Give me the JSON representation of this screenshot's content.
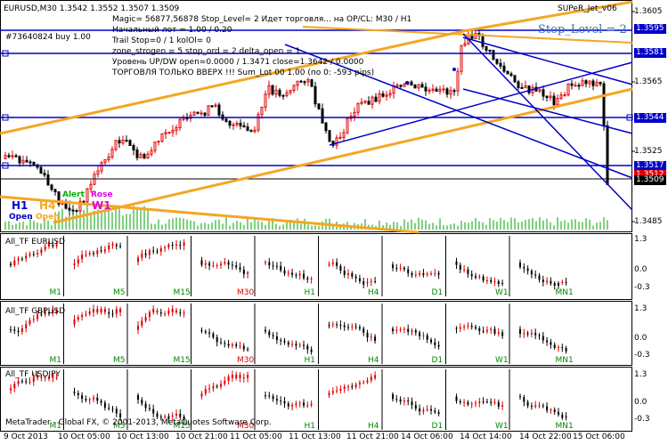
{
  "title_bar": {
    "symbol": "EURUSD,M30",
    "ohlc": "1.3542 1.3552 1.3507 1.3509",
    "indicator_name": "SUPeR_Jet_v06",
    "order_line": "#73640824 buy 1.00"
  },
  "info_lines": [
    "Magic= 56877,56878  Stop_Level= 2  Идет торговля... на OP/CL: M30 / H1",
    "Начальный лот = 1.00 / 0.20",
    "Trail Stop=0 / 1  kolOl= 0",
    "zone_strogen = 5  stop_ord = 2  delta_open = 1",
    "Уровень UP/DW open=0.0000 / 1.3471  close=1.3642 / 0.0000",
    "ТОРГОВЛЯ ТОЛЬКО ВВЕРХ !!!  Sum_Lot 00 1.00 (по 0: -593 pips)"
  ],
  "stop_level_label": "Stop_Level = 2",
  "price_axis": [
    "1.3605",
    "1.3565",
    "1.3525",
    "1.3485"
  ],
  "price_tags": {
    "t3595": "1.3595",
    "t3581": "1.3581",
    "t3544": "1.3544",
    "t3517": "1.3517",
    "t3512": "1.3512",
    "t3509": "1.3509"
  },
  "tf_tags": {
    "h1": "H1",
    "h4": "H4",
    "open1": "Open",
    "open2": "Open",
    "alert": "Alert",
    "rose": "Rose",
    "w1": "W1"
  },
  "panels": [
    {
      "title": "All_TF EURUSD",
      "axis": [
        "1.3",
        "0.0",
        "-0.3"
      ]
    },
    {
      "title": "All_TF GBPUSD",
      "axis": [
        "1.3",
        "0.0",
        "-0.3"
      ]
    },
    {
      "title": "All_TF USDJPY",
      "axis": [
        "1.3",
        "0.0",
        "-0.3"
      ]
    }
  ],
  "timeframes": [
    "M1",
    "M5",
    "M15",
    "M30",
    "H1",
    "H4",
    "D1",
    "W1",
    "MN1"
  ],
  "copyright": "MetaTrader - Global FX, © 2001-2013, MetaQuotes Software Corp.",
  "dates": [
    "9 Oct 2013",
    "10 Oct 05:00",
    "10 Oct 13:00",
    "10 Oct 21:00",
    "11 Oct 05:00",
    "11 Oct 13:00",
    "11 Oct 21:00",
    "14 Oct 06:00",
    "14 Oct 14:00",
    "14 Oct 22:00",
    "15 Oct 06:00"
  ],
  "colors": {
    "up_candle": "#e00000",
    "down_candle": "#000000",
    "trend_orange": "#f5a623",
    "trend_blue": "#0000c8",
    "volume": "#00a000",
    "active_tf": "#e00000",
    "inactive_tf": "#008800"
  }
}
